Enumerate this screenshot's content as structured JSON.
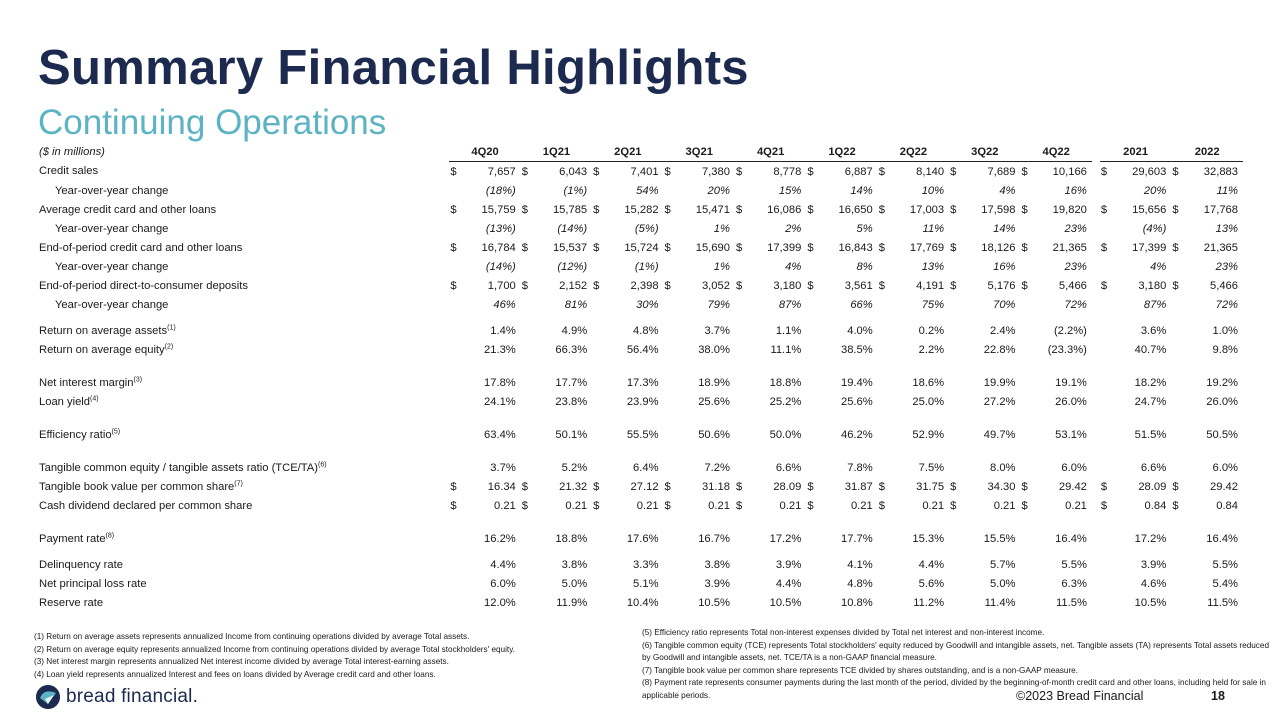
{
  "title": "Summary Financial Highlights",
  "subtitle": "Continuing Operations",
  "units_label": "($ in millions)",
  "periods": [
    "4Q20",
    "1Q21",
    "2Q21",
    "3Q21",
    "4Q21",
    "1Q22",
    "2Q22",
    "3Q22",
    "4Q22",
    "2021",
    "2022"
  ],
  "rows": [
    {
      "type": "row",
      "label": "Credit sales",
      "sup": "",
      "style": "dollar",
      "values": [
        "7,657",
        "6,043",
        "7,401",
        "7,380",
        "8,778",
        "6,887",
        "8,140",
        "7,689",
        "10,166",
        "29,603",
        "32,883"
      ]
    },
    {
      "type": "row",
      "label": "Year-over-year change",
      "sup": "",
      "style": "yoy",
      "values": [
        "(18%)",
        "(1%)",
        "54%",
        "20%",
        "15%",
        "14%",
        "10%",
        "4%",
        "16%",
        "20%",
        "11%"
      ]
    },
    {
      "type": "row",
      "label": "Average credit card and other loans",
      "sup": "",
      "style": "dollar",
      "values": [
        "15,759",
        "15,785",
        "15,282",
        "15,471",
        "16,086",
        "16,650",
        "17,003",
        "17,598",
        "19,820",
        "15,656",
        "17,768"
      ]
    },
    {
      "type": "row",
      "label": "Year-over-year change",
      "sup": "",
      "style": "yoy",
      "values": [
        "(13%)",
        "(14%)",
        "(5%)",
        "1%",
        "2%",
        "5%",
        "11%",
        "14%",
        "23%",
        "(4%)",
        "13%"
      ]
    },
    {
      "type": "row",
      "label": "End-of-period credit card and other loans",
      "sup": "",
      "style": "dollar",
      "values": [
        "16,784",
        "15,537",
        "15,724",
        "15,690",
        "17,399",
        "16,843",
        "17,769",
        "18,126",
        "21,365",
        "17,399",
        "21,365"
      ]
    },
    {
      "type": "row",
      "label": "Year-over-year change",
      "sup": "",
      "style": "yoy",
      "values": [
        "(14%)",
        "(12%)",
        "(1%)",
        "1%",
        "4%",
        "8%",
        "13%",
        "16%",
        "23%",
        "4%",
        "23%"
      ]
    },
    {
      "type": "row",
      "label": "End-of-period direct-to-consumer deposits",
      "sup": "",
      "style": "dollar",
      "values": [
        "1,700",
        "2,152",
        "2,398",
        "3,052",
        "3,180",
        "3,561",
        "4,191",
        "5,176",
        "5,466",
        "3,180",
        "5,466"
      ]
    },
    {
      "type": "row",
      "label": "Year-over-year change",
      "sup": "",
      "style": "yoy",
      "values": [
        "46%",
        "81%",
        "30%",
        "79%",
        "87%",
        "66%",
        "75%",
        "70%",
        "72%",
        "87%",
        "72%"
      ]
    },
    {
      "type": "gap"
    },
    {
      "type": "row",
      "label": "Return on average assets",
      "sup": "(1)",
      "style": "plain",
      "values": [
        "1.4%",
        "4.9%",
        "4.8%",
        "3.7%",
        "1.1%",
        "4.0%",
        "0.2%",
        "2.4%",
        "(2.2%)",
        "3.6%",
        "1.0%"
      ]
    },
    {
      "type": "row",
      "label": "Return on average equity",
      "sup": "(2)",
      "style": "plain",
      "values": [
        "21.3%",
        "66.3%",
        "56.4%",
        "38.0%",
        "11.1%",
        "38.5%",
        "2.2%",
        "22.8%",
        "(23.3%)",
        "40.7%",
        "9.8%"
      ]
    },
    {
      "type": "gapb"
    },
    {
      "type": "row",
      "label": "Net interest margin",
      "sup": "(3)",
      "style": "plain",
      "values": [
        "17.8%",
        "17.7%",
        "17.3%",
        "18.9%",
        "18.8%",
        "19.4%",
        "18.6%",
        "19.9%",
        "19.1%",
        "18.2%",
        "19.2%"
      ]
    },
    {
      "type": "row",
      "label": "Loan yield",
      "sup": "(4)",
      "style": "plain",
      "values": [
        "24.1%",
        "23.8%",
        "23.9%",
        "25.6%",
        "25.2%",
        "25.6%",
        "25.0%",
        "27.2%",
        "26.0%",
        "24.7%",
        "26.0%"
      ]
    },
    {
      "type": "gapb"
    },
    {
      "type": "row",
      "label": "Efficiency ratio",
      "sup": "(5)",
      "style": "plain",
      "values": [
        "63.4%",
        "50.1%",
        "55.5%",
        "50.6%",
        "50.0%",
        "46.2%",
        "52.9%",
        "49.7%",
        "53.1%",
        "51.5%",
        "50.5%"
      ]
    },
    {
      "type": "gapb"
    },
    {
      "type": "row",
      "label": "Tangible common equity / tangible assets ratio (TCE/TA)",
      "sup": "(6)",
      "style": "plain",
      "values": [
        "3.7%",
        "5.2%",
        "6.4%",
        "7.2%",
        "6.6%",
        "7.8%",
        "7.5%",
        "8.0%",
        "6.0%",
        "6.6%",
        "6.0%"
      ]
    },
    {
      "type": "row",
      "label": "Tangible book value per common share",
      "sup": "(7)",
      "style": "dollar",
      "values": [
        "16.34",
        "21.32",
        "27.12",
        "31.18",
        "28.09",
        "31.87",
        "31.75",
        "34.30",
        "29.42",
        "28.09",
        "29.42"
      ]
    },
    {
      "type": "row",
      "label": "Cash dividend declared per common share",
      "sup": "",
      "style": "dollar",
      "values": [
        "0.21",
        "0.21",
        "0.21",
        "0.21",
        "0.21",
        "0.21",
        "0.21",
        "0.21",
        "0.21",
        "0.84",
        "0.84"
      ]
    },
    {
      "type": "gapb"
    },
    {
      "type": "row",
      "label": "Payment rate",
      "sup": "(8)",
      "style": "plain",
      "values": [
        "16.2%",
        "18.8%",
        "17.6%",
        "16.7%",
        "17.2%",
        "17.7%",
        "15.3%",
        "15.5%",
        "16.4%",
        "17.2%",
        "16.4%"
      ]
    },
    {
      "type": "gap"
    },
    {
      "type": "row",
      "label": "Delinquency rate",
      "sup": "",
      "style": "plain",
      "values": [
        "4.4%",
        "3.8%",
        "3.3%",
        "3.8%",
        "3.9%",
        "4.1%",
        "4.4%",
        "5.7%",
        "5.5%",
        "3.9%",
        "5.5%"
      ]
    },
    {
      "type": "row",
      "label": "Net principal loss rate",
      "sup": "",
      "style": "plain",
      "values": [
        "6.0%",
        "5.0%",
        "5.1%",
        "3.9%",
        "4.4%",
        "4.8%",
        "5.6%",
        "5.0%",
        "6.3%",
        "4.6%",
        "5.4%"
      ]
    },
    {
      "type": "row",
      "label": "Reserve rate",
      "sup": "",
      "style": "plain",
      "values": [
        "12.0%",
        "11.9%",
        "10.4%",
        "10.5%",
        "10.5%",
        "10.8%",
        "11.2%",
        "11.4%",
        "11.5%",
        "10.5%",
        "11.5%"
      ]
    }
  ],
  "footnotes_left": [
    "(1) Return on average assets represents annualized Income from continuing operations divided by average Total assets.",
    "(2) Return on average equity represents annualized Income from continuing operations divided by average Total stockholders' equity.",
    "(3) Net interest margin represents annualized Net interest income divided by average Total interest-earning assets.",
    "(4) Loan yield represents annualized Interest and fees on loans divided by Average credit card and other loans."
  ],
  "footnotes_right": [
    "(5) Efficiency ratio represents Total non-interest expenses divided by Total net interest and non-interest income.",
    "(6) Tangible common equity (TCE) represents Total stockholders' equity reduced by Goodwill and intangible assets, net. Tangible assets (TA) represents Total assets reduced by Goodwill and intangible assets, net. TCE/TA is a non-GAAP financial measure.",
    "(7) Tangible book value per common share represents TCE divided by shares outstanding, and is a non-GAAP measure.",
    "(8) Payment rate represents consumer payments during the last month of the period, divided by the beginning-of-month credit card and other loans, including held for sale in applicable periods."
  ],
  "footer": {
    "logo_text": "bread financial.",
    "copyright": "©2023 Bread Financial",
    "page_number": "18"
  },
  "colors": {
    "navy": "#1b2a4e",
    "teal": "#5cb3c3"
  }
}
